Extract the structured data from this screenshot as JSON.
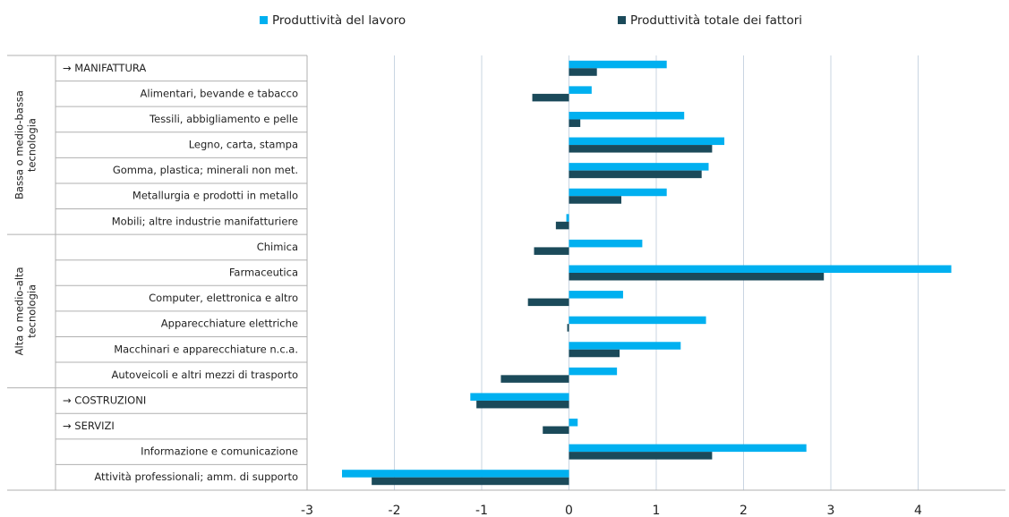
{
  "chart_data": {
    "type": "hbar",
    "categories": [
      "→ MANIFATTURA",
      "Alimentari, bevande e tabacco",
      "Tessili, abbigliamento e pelle",
      "Legno, carta, stampa",
      "Gomma, plastica; minerali non met.",
      "Metallurgia e prodotti in metallo",
      "Mobili; altre industrie manifatturiere",
      "Chimica",
      "Farmaceutica",
      "Computer, elettronica e altro",
      "Apparecchiature elettriche",
      "Macchinari e apparecchiature n.c.a.",
      "Autoveicoli e altri mezzi di trasporto",
      "→ COSTRUZIONI",
      "→ SERVIZI",
      "Informazione e comunicazione",
      "Attività professionali; amm. di supporto"
    ],
    "groups": [
      {
        "label": [
          "Bassa o medio-bassa",
          "tecnologia"
        ],
        "first": 0,
        "last": 6
      },
      {
        "label": [
          "Alta o medio-alta",
          "tecnologia"
        ],
        "first": 7,
        "last": 12
      }
    ],
    "series": [
      {
        "name": "Produttività del lavoro",
        "color": "#00b0f0",
        "values": [
          1.12,
          0.26,
          1.32,
          1.78,
          1.6,
          1.12,
          -0.03,
          0.84,
          4.38,
          0.62,
          1.57,
          1.28,
          0.55,
          -1.13,
          0.1,
          2.72,
          -2.6
        ]
      },
      {
        "name": "Produttività totale dei fattori",
        "color": "#1b4a5a",
        "values": [
          0.32,
          -0.42,
          0.13,
          1.64,
          1.52,
          0.6,
          -0.15,
          -0.4,
          2.92,
          -0.47,
          -0.02,
          0.58,
          -0.78,
          -1.06,
          -0.3,
          1.64,
          -2.26
        ]
      }
    ],
    "xlim": [
      -3,
      5
    ],
    "xticks": [
      -3,
      -2,
      -1,
      0,
      1,
      2,
      3,
      4
    ],
    "grid": true,
    "legend": "top"
  }
}
